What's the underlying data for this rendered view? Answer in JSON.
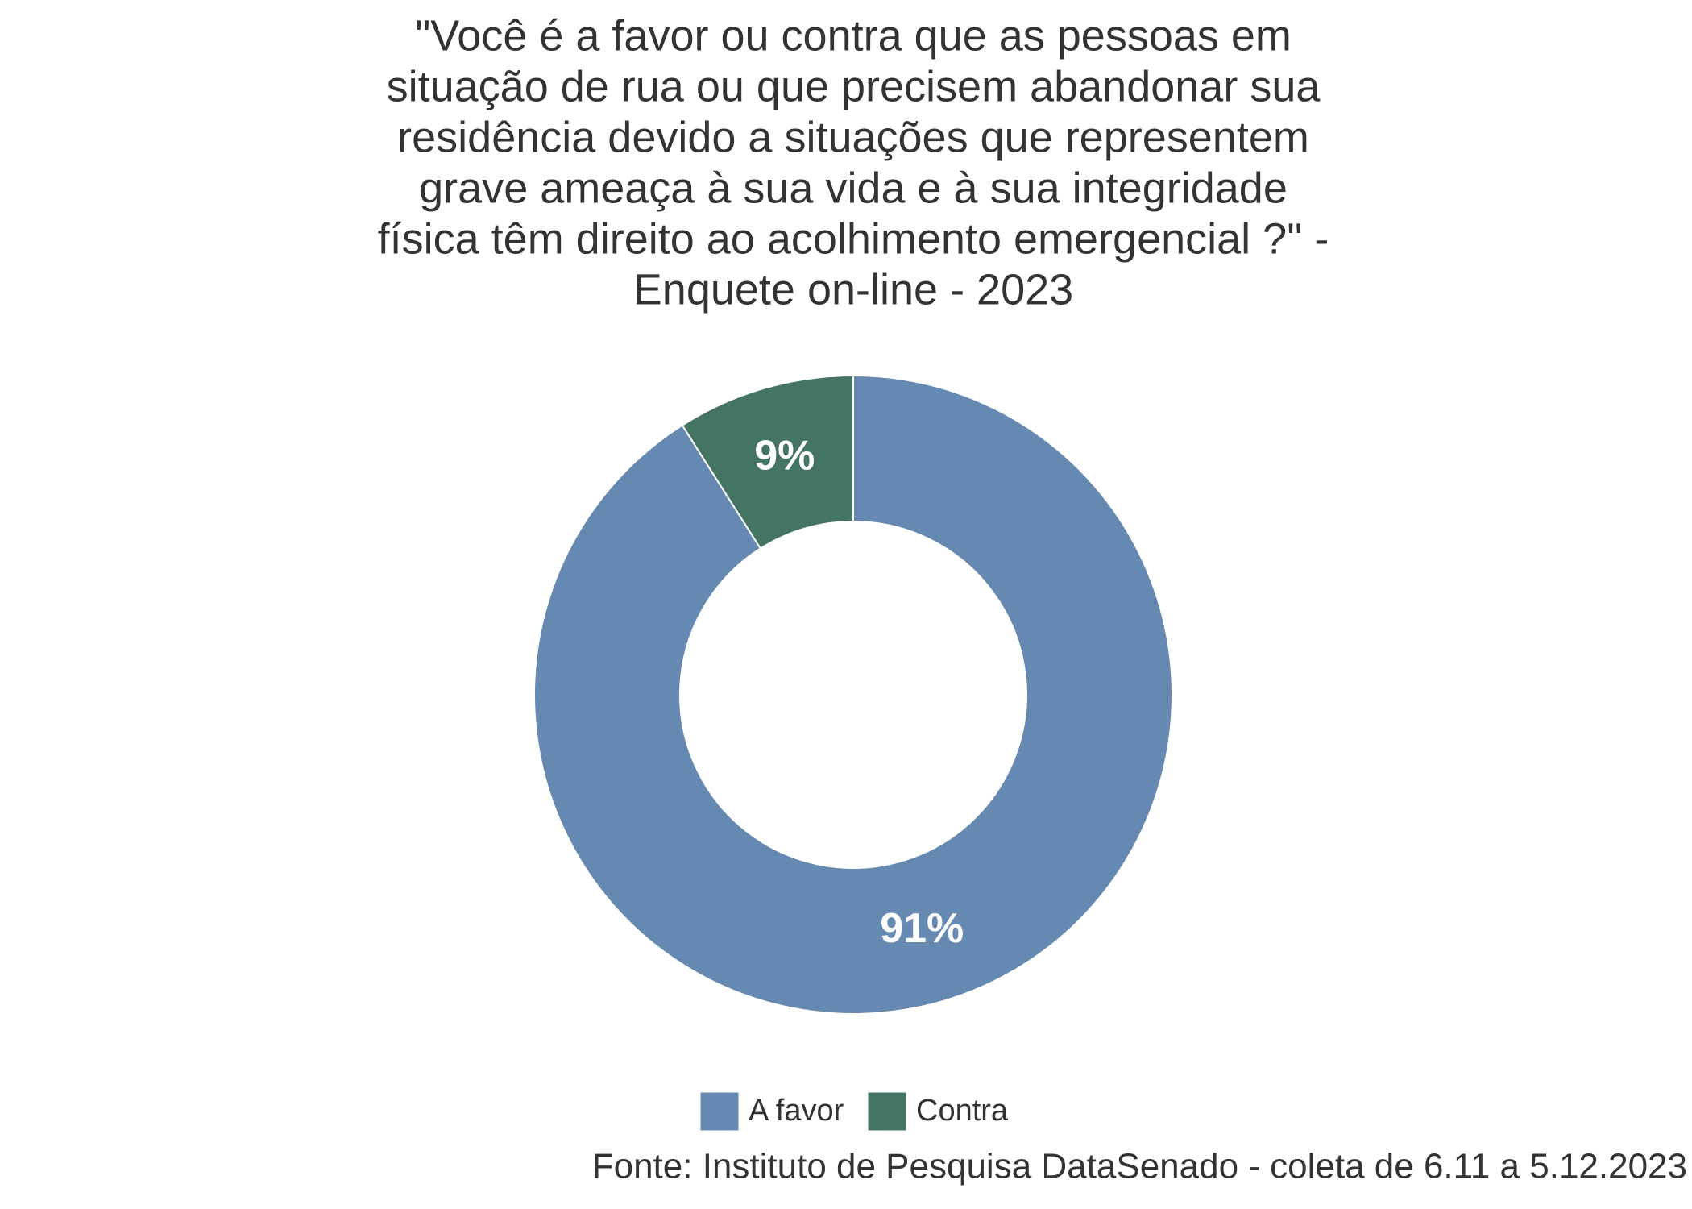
{
  "chart_data": {
    "type": "donut",
    "title": [
      "\"Você é a favor ou contra que as pessoas em",
      "situação de rua ou que precisem abandonar sua",
      "residência devido a situações que representem",
      "grave ameaça à sua vida e à sua integridade",
      "física têm direito ao acolhimento emergencial ?\" -",
      "Enquete on-line - 2023"
    ],
    "categories": [
      "A favor",
      "Contra"
    ],
    "values": [
      91,
      9
    ],
    "value_labels": [
      "91%",
      "9%"
    ],
    "colors": [
      "#6689b1",
      "#447562"
    ],
    "caption": "Fonte: Instituto de Pesquisa DataSenado - coleta de 6.11 a 5.12.2023",
    "legend": "bottom"
  }
}
